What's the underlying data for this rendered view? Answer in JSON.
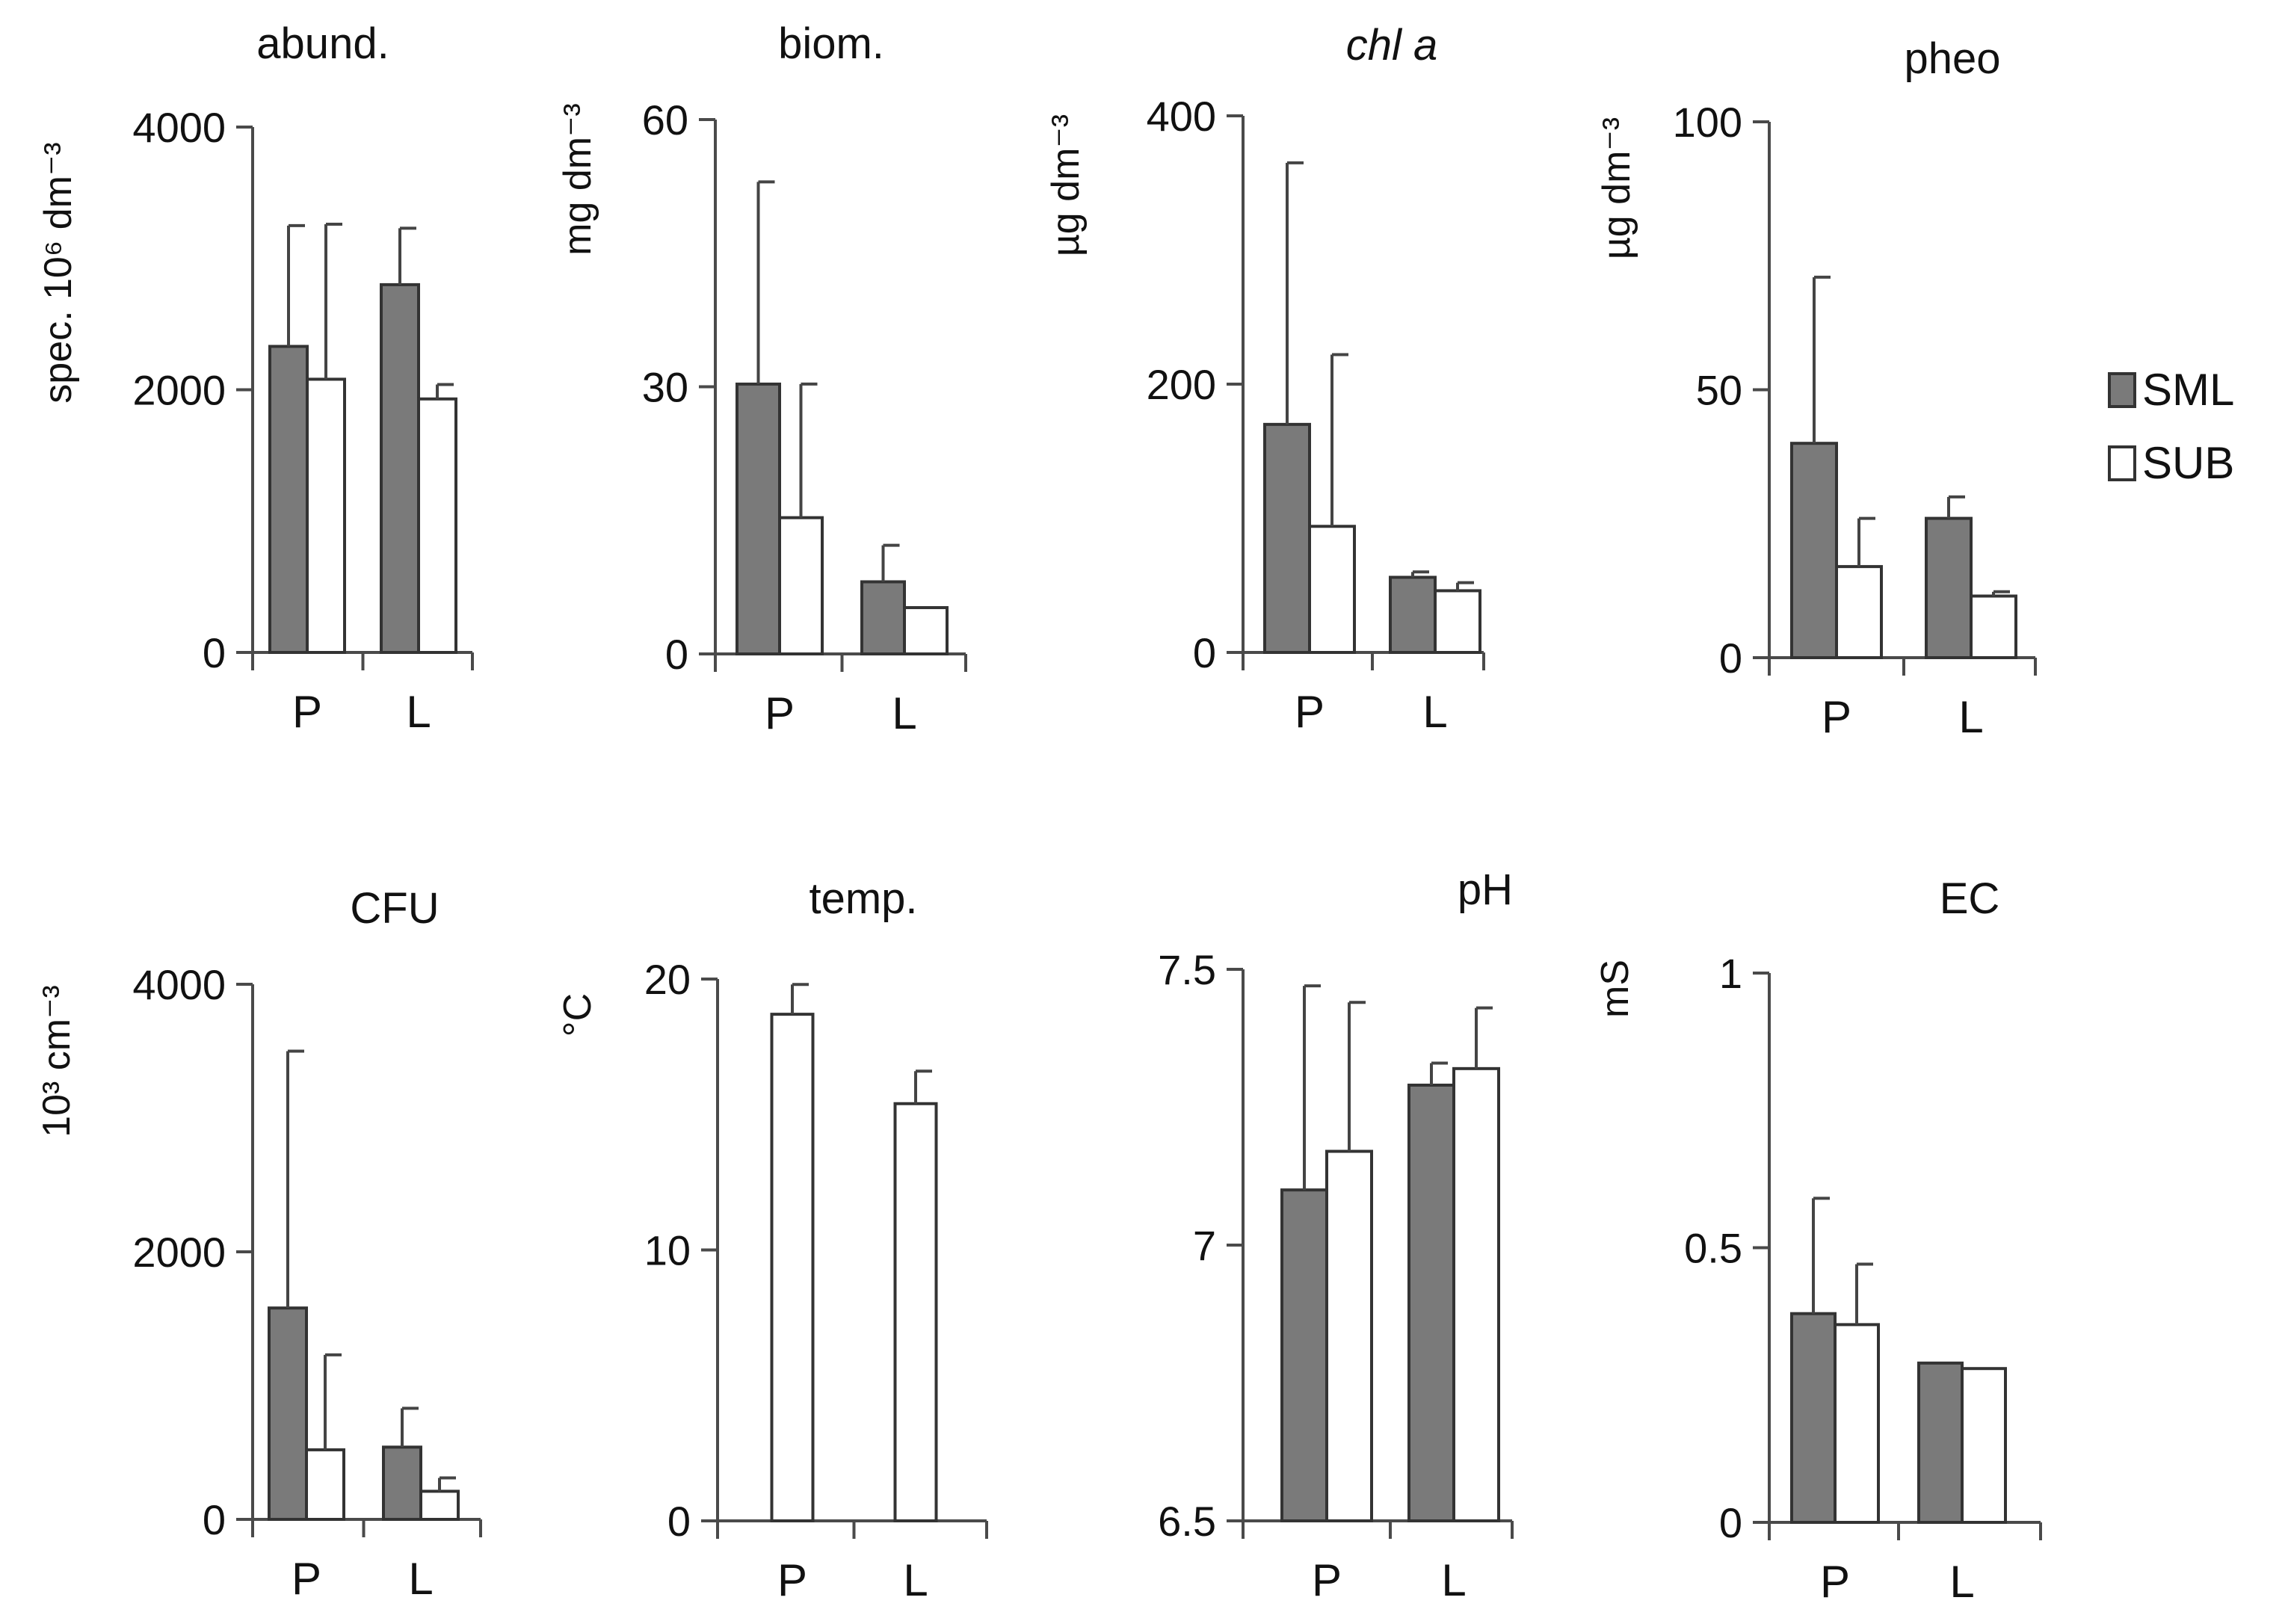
{
  "legend": {
    "items": [
      {
        "label": "SML",
        "color": "#7a7a7a"
      },
      {
        "label": "SUB",
        "color": "#ffffff"
      }
    ]
  },
  "colors": {
    "sml": "#7a7a7a",
    "sub": "#ffffff"
  },
  "chart_data": [
    {
      "type": "bar",
      "title": "abund.",
      "italic_title": false,
      "ylabel": "spec. 10⁶ dm⁻³",
      "categories": [
        "P",
        "L"
      ],
      "ylim": [
        0,
        4000
      ],
      "yticks": [
        {
          "v": 0,
          "label": "0"
        },
        {
          "v": 2000,
          "label": "2000"
        },
        {
          "v": 4000,
          "label": "4000"
        }
      ],
      "series": [
        {
          "name": "SML",
          "values": [
            2330,
            2800
          ],
          "errors": [
            920,
            430
          ]
        },
        {
          "name": "SUB",
          "values": [
            2080,
            1930
          ],
          "errors": [
            1180,
            110
          ]
        }
      ]
    },
    {
      "type": "bar",
      "title": "biom.",
      "italic_title": false,
      "ylabel": "mg dm⁻³",
      "categories": [
        "P",
        "L"
      ],
      "ylim": [
        0,
        60
      ],
      "yticks": [
        {
          "v": 0,
          "label": "0"
        },
        {
          "v": 30,
          "label": "30"
        },
        {
          "v": 60,
          "label": "60"
        }
      ],
      "series": [
        {
          "name": "SML",
          "values": [
            30.3,
            8.1
          ],
          "errors": [
            22.7,
            4.1
          ]
        },
        {
          "name": "SUB",
          "values": [
            15.3,
            5.2
          ],
          "errors": [
            15.0,
            0.0
          ]
        }
      ]
    },
    {
      "type": "bar",
      "title": "chl a",
      "italic_title": true,
      "ylabel": "µg dm⁻³",
      "categories": [
        "P",
        "L"
      ],
      "ylim": [
        0,
        400
      ],
      "yticks": [
        {
          "v": 0,
          "label": "0"
        },
        {
          "v": 200,
          "label": "200"
        },
        {
          "v": 400,
          "label": "400"
        }
      ],
      "series": [
        {
          "name": "SML",
          "values": [
            170,
            56
          ],
          "errors": [
            195,
            4
          ]
        },
        {
          "name": "SUB",
          "values": [
            94,
            46
          ],
          "errors": [
            128,
            6
          ]
        }
      ]
    },
    {
      "type": "bar",
      "title": "pheo",
      "italic_title": false,
      "ylabel": "µg dm⁻³",
      "categories": [
        "P",
        "L"
      ],
      "ylim": [
        0,
        100
      ],
      "yticks": [
        {
          "v": 0,
          "label": "0"
        },
        {
          "v": 50,
          "label": "50"
        },
        {
          "v": 100,
          "label": "100"
        }
      ],
      "series": [
        {
          "name": "SML",
          "values": [
            40,
            26
          ],
          "errors": [
            31,
            4
          ]
        },
        {
          "name": "SUB",
          "values": [
            17,
            11.5
          ],
          "errors": [
            9,
            0.8
          ]
        }
      ]
    },
    {
      "type": "bar",
      "title": "CFU",
      "italic_title": false,
      "ylabel": "10³ cm⁻³",
      "categories": [
        "P",
        "L"
      ],
      "ylim": [
        0,
        4000
      ],
      "yticks": [
        {
          "v": 0,
          "label": "0"
        },
        {
          "v": 2000,
          "label": "2000"
        },
        {
          "v": 4000,
          "label": "4000"
        }
      ],
      "series": [
        {
          "name": "SML",
          "values": [
            1580,
            540
          ],
          "errors": [
            1920,
            290
          ]
        },
        {
          "name": "SUB",
          "values": [
            520,
            210
          ],
          "errors": [
            710,
            100
          ]
        }
      ]
    },
    {
      "type": "bar",
      "title": "temp.",
      "italic_title": false,
      "ylabel": "°C",
      "categories": [
        "P",
        "L"
      ],
      "ylim": [
        0,
        20
      ],
      "yticks": [
        {
          "v": 0,
          "label": "0"
        },
        {
          "v": 10,
          "label": "10"
        },
        {
          "v": 20,
          "label": "20"
        }
      ],
      "series": [
        {
          "name": "SUB",
          "values": [
            18.7,
            15.4
          ],
          "errors": [
            1.1,
            1.2
          ]
        }
      ]
    },
    {
      "type": "bar",
      "title": "pH",
      "italic_title": false,
      "ylabel": "",
      "categories": [
        "P",
        "L"
      ],
      "ylim": [
        6.5,
        7.5
      ],
      "yticks": [
        {
          "v": 6.5,
          "label": "6.5"
        },
        {
          "v": 7,
          "label": "7"
        },
        {
          "v": 7.5,
          "label": "7.5"
        }
      ],
      "series": [
        {
          "name": "SML",
          "values": [
            7.1,
            7.29
          ],
          "errors": [
            0.37,
            0.04
          ]
        },
        {
          "name": "SUB",
          "values": [
            7.17,
            7.32
          ],
          "errors": [
            0.27,
            0.11
          ]
        }
      ]
    },
    {
      "type": "bar",
      "title": "EC",
      "italic_title": false,
      "ylabel": "mS",
      "categories": [
        "P",
        "L"
      ],
      "ylim": [
        0,
        1
      ],
      "yticks": [
        {
          "v": 0,
          "label": "0"
        },
        {
          "v": 0.5,
          "label": "0.5"
        },
        {
          "v": 1,
          "label": "1"
        }
      ],
      "series": [
        {
          "name": "SML",
          "values": [
            0.38,
            0.29
          ],
          "errors": [
            0.21,
            0.0
          ]
        },
        {
          "name": "SUB",
          "values": [
            0.36,
            0.28
          ],
          "errors": [
            0.11,
            0.0
          ]
        }
      ]
    }
  ]
}
